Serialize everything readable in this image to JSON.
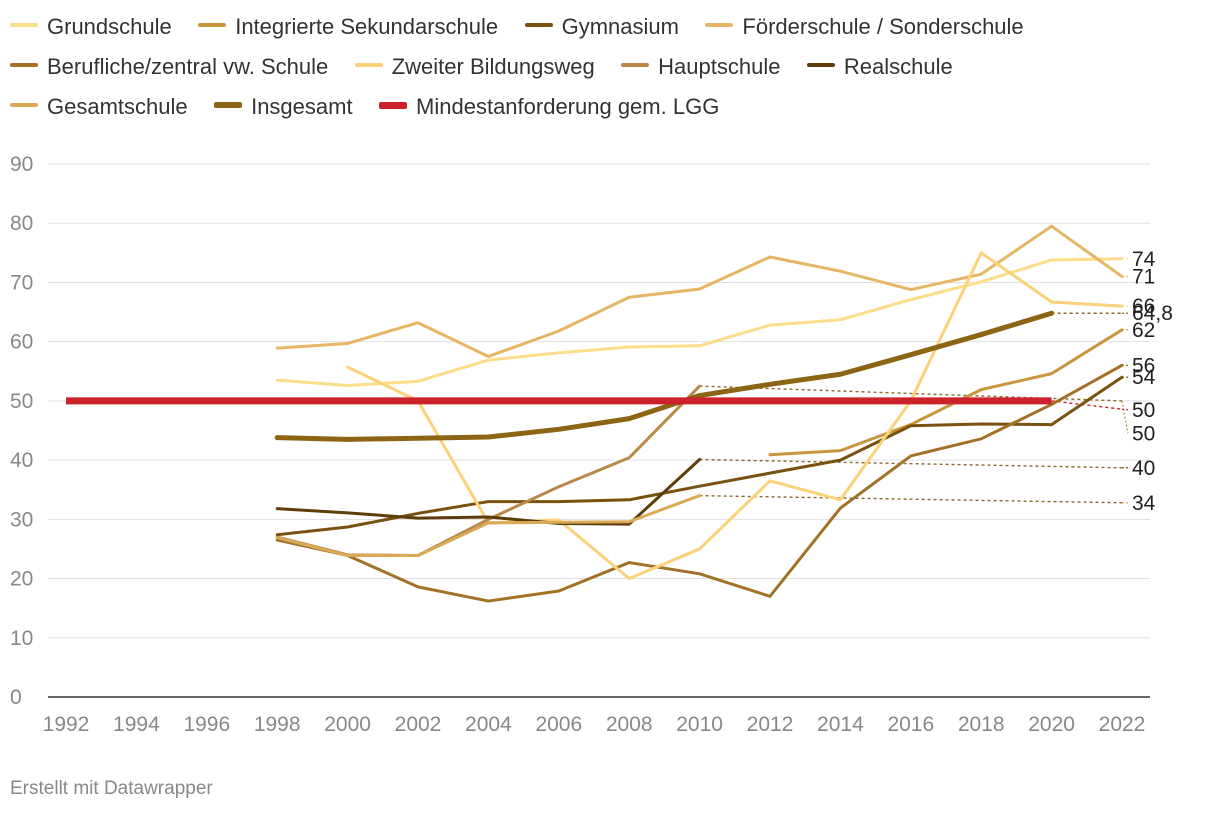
{
  "chart_data": {
    "type": "line",
    "title": "",
    "xlabel": "",
    "ylabel": "",
    "xlim": [
      1992,
      2022
    ],
    "ylim": [
      0,
      90
    ],
    "x_ticks": [
      "1992",
      "1994",
      "1996",
      "1998",
      "2000",
      "2002",
      "2004",
      "2006",
      "2008",
      "2010",
      "2012",
      "2014",
      "2016",
      "2018",
      "2020",
      "2022"
    ],
    "y_ticks": [
      "0",
      "10",
      "20",
      "30",
      "40",
      "50",
      "60",
      "70",
      "80",
      "90"
    ],
    "grid": true,
    "legend_position": "top",
    "series": [
      {
        "name": "Grundschule",
        "color": "#fddc8a",
        "width": 3,
        "points": [
          [
            1998,
            53.5
          ],
          [
            2000,
            52.6
          ],
          [
            2002,
            53.3
          ],
          [
            2004,
            56.9
          ],
          [
            2006,
            58.1
          ],
          [
            2008,
            59.1
          ],
          [
            2010,
            59.3
          ],
          [
            2012,
            62.8
          ],
          [
            2014,
            63.7
          ],
          [
            2016,
            67.1
          ],
          [
            2018,
            70.1
          ],
          [
            2020,
            73.8
          ],
          [
            2022,
            74.0
          ]
        ],
        "end_label": "74",
        "end_value": 74
      },
      {
        "name": "Integrierte Sekundarschule",
        "color": "#c8963e",
        "width": 3,
        "points": [
          [
            2012,
            40.9
          ],
          [
            2014,
            41.6
          ],
          [
            2016,
            46.0
          ],
          [
            2018,
            51.9
          ],
          [
            2020,
            54.6
          ],
          [
            2022,
            62.0
          ]
        ],
        "end_label": "62",
        "end_value": 62
      },
      {
        "name": "Gymnasium",
        "color": "#7a5210",
        "width": 3,
        "points": [
          [
            1998,
            27.4
          ],
          [
            2000,
            28.7
          ],
          [
            2002,
            31.0
          ],
          [
            2004,
            33.0
          ],
          [
            2006,
            33.0
          ],
          [
            2008,
            33.3
          ],
          [
            2010,
            35.6
          ],
          [
            2012,
            37.8
          ],
          [
            2014,
            40.0
          ],
          [
            2016,
            45.8
          ],
          [
            2018,
            46.1
          ],
          [
            2020,
            46.0
          ],
          [
            2022,
            54.0
          ]
        ],
        "end_label": "54",
        "end_value": 54
      },
      {
        "name": "Förderschule / Sonderschule",
        "color": "#e6b565",
        "width": 3,
        "points": [
          [
            1998,
            58.9
          ],
          [
            2000,
            59.7
          ],
          [
            2002,
            63.2
          ],
          [
            2004,
            57.5
          ],
          [
            2006,
            61.8
          ],
          [
            2008,
            67.5
          ],
          [
            2010,
            68.9
          ],
          [
            2012,
            74.3
          ],
          [
            2014,
            71.9
          ],
          [
            2016,
            68.8
          ],
          [
            2018,
            71.4
          ],
          [
            2020,
            79.5
          ],
          [
            2022,
            71.0
          ]
        ],
        "end_label": "71",
        "end_value": 71
      },
      {
        "name": "Berufliche/zentral vw. Schule",
        "color": "#a27128",
        "width": 3,
        "points": [
          [
            1998,
            26.5
          ],
          [
            2000,
            23.9
          ],
          [
            2002,
            18.6
          ],
          [
            2004,
            16.2
          ],
          [
            2006,
            17.9
          ],
          [
            2008,
            22.7
          ],
          [
            2010,
            20.8
          ],
          [
            2012,
            17.0
          ],
          [
            2014,
            31.9
          ],
          [
            2016,
            40.7
          ],
          [
            2018,
            43.6
          ],
          [
            2020,
            49.4
          ],
          [
            2022,
            56.0
          ]
        ],
        "end_label": "56",
        "end_value": 56
      },
      {
        "name": "Zweiter Bildungsweg",
        "color": "#fcd17c",
        "width": 3,
        "points": [
          [
            2000,
            55.7
          ],
          [
            2002,
            50.0
          ],
          [
            2004,
            29.4
          ],
          [
            2006,
            29.9
          ],
          [
            2008,
            20.0
          ],
          [
            2010,
            25.0
          ],
          [
            2012,
            36.5
          ],
          [
            2014,
            33.3
          ],
          [
            2016,
            50.0
          ],
          [
            2018,
            75.0
          ],
          [
            2020,
            66.7
          ],
          [
            2022,
            66.0
          ]
        ],
        "end_label": "66",
        "end_value": 66
      },
      {
        "name": "Hauptschule",
        "color": "#b8894a",
        "width": 3,
        "points": [
          [
            1998,
            27.0
          ],
          [
            2000,
            24.0
          ],
          [
            2002,
            23.9
          ],
          [
            2004,
            30.0
          ],
          [
            2006,
            35.5
          ],
          [
            2008,
            40.4
          ],
          [
            2010,
            52.5
          ]
        ],
        "ext": [
          [
            2010,
            52.5
          ],
          [
            2022,
            50.0
          ]
        ],
        "end_label": "50",
        "end_value": 44.5
      },
      {
        "name": "Realschule",
        "color": "#5e3d0a",
        "width": 3,
        "points": [
          [
            1998,
            31.8
          ],
          [
            2000,
            31.1
          ],
          [
            2002,
            30.2
          ],
          [
            2004,
            30.4
          ],
          [
            2006,
            29.3
          ],
          [
            2008,
            29.2
          ],
          [
            2010,
            40.1
          ]
        ],
        "ext": [
          [
            2010,
            40.1
          ],
          [
            2022,
            38.7
          ]
        ],
        "end_label": "40",
        "end_value": 38.7
      },
      {
        "name": "Gesamtschule",
        "color": "#d9a955",
        "width": 3,
        "points": [
          [
            1998,
            26.9
          ],
          [
            2000,
            23.9
          ],
          [
            2002,
            23.9
          ],
          [
            2004,
            29.4
          ],
          [
            2006,
            29.5
          ],
          [
            2008,
            29.6
          ],
          [
            2010,
            34.0
          ]
        ],
        "ext": [
          [
            2010,
            34.0
          ],
          [
            2022,
            32.8
          ]
        ],
        "end_label": "34",
        "end_value": 32.8
      },
      {
        "name": "Insgesamt",
        "color": "#8c6514",
        "width": 5,
        "points": [
          [
            1998,
            43.8
          ],
          [
            2000,
            43.5
          ],
          [
            2002,
            43.7
          ],
          [
            2004,
            43.9
          ],
          [
            2006,
            45.2
          ],
          [
            2008,
            47.0
          ],
          [
            2010,
            50.9
          ],
          [
            2012,
            52.8
          ],
          [
            2014,
            54.5
          ],
          [
            2016,
            57.8
          ],
          [
            2018,
            61.2
          ],
          [
            2020,
            64.8
          ]
        ],
        "ext": [
          [
            2020,
            64.8
          ],
          [
            2022,
            64.8
          ]
        ],
        "end_label": "64,8",
        "end_value": 64.8
      },
      {
        "name": "Mindestanforderung gem. LGG",
        "color": "#cc2229",
        "width": 7,
        "points": [
          [
            1992,
            50
          ],
          [
            2020,
            50
          ]
        ],
        "ext": [
          [
            2020,
            50
          ],
          [
            2022,
            48.6
          ]
        ],
        "end_label": "50",
        "end_value": 48.5
      }
    ]
  },
  "footer": {
    "credit": "Erstellt mit Datawrapper"
  }
}
